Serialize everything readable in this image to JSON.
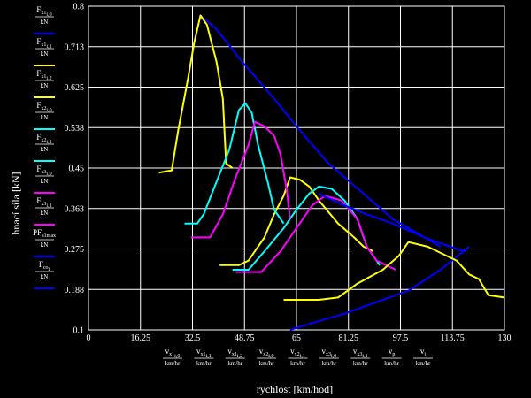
{
  "chart_data": {
    "type": "line",
    "xlabel": "rychlost [km/hod]",
    "ylabel": "hnací síla [kN]",
    "xlim": [
      0,
      130
    ],
    "ylim": [
      0.1,
      0.8
    ],
    "x_ticks": [
      "0",
      "16.25",
      "32.5",
      "48.75",
      "65",
      "81.25",
      "97.5",
      "113.75",
      "130"
    ],
    "y_ticks": [
      "0.1",
      "0.188",
      "0.275",
      "0.363",
      "0.45",
      "0.538",
      "0.625",
      "0.713",
      "0.8"
    ],
    "grid": true,
    "legend_position": "left",
    "x_series_labels": [
      {
        "base": "v",
        "sub": "x1",
        "idx": "i,0",
        "den": "km/hr"
      },
      {
        "base": "v",
        "sub": "x1",
        "idx": "i,1",
        "den": "km/hr"
      },
      {
        "base": "v",
        "sub": "x1",
        "idx": "i,2",
        "den": "km/hr"
      },
      {
        "base": "v",
        "sub": "x2",
        "idx": "i,0",
        "den": "km/hr"
      },
      {
        "base": "v",
        "sub": "x2",
        "idx": "i,1",
        "den": "km/hr"
      },
      {
        "base": "v",
        "sub": "x3",
        "idx": "i,0",
        "den": "km/hr"
      },
      {
        "base": "v",
        "sub": "x3",
        "idx": "i,1",
        "den": "km/hr"
      },
      {
        "base": "v",
        "sub": "p",
        "idx": "",
        "den": "km/hr"
      },
      {
        "base": "v",
        "sub": "",
        "idx": "i",
        "den": "km/hr"
      }
    ],
    "series": [
      {
        "legend": {
          "base": "F",
          "sub": "x1",
          "idx": "i,0",
          "den": "kN"
        },
        "color": "#0000ff",
        "points": [
          [
            35,
            0.78
          ],
          [
            40,
            0.75
          ],
          [
            48,
            0.68
          ],
          [
            58,
            0.6
          ],
          [
            65,
            0.54
          ],
          [
            75,
            0.46
          ],
          [
            85,
            0.4
          ],
          [
            95,
            0.34
          ],
          [
            105,
            0.3
          ],
          [
            110,
            0.28
          ]
        ]
      },
      {
        "legend": {
          "base": "F",
          "sub": "x1",
          "idx": "i,1",
          "den": "kN"
        },
        "color": "#ffff00",
        "points": [
          [
            22,
            0.44
          ],
          [
            26,
            0.445
          ],
          [
            28,
            0.53
          ],
          [
            31,
            0.64
          ],
          [
            33,
            0.72
          ],
          [
            35,
            0.78
          ],
          [
            37,
            0.76
          ],
          [
            40,
            0.68
          ],
          [
            42,
            0.6
          ],
          [
            43,
            0.46
          ],
          [
            45,
            0.45
          ]
        ]
      },
      {
        "legend": {
          "base": "F",
          "sub": "x1",
          "idx": "i,2",
          "den": "kN"
        },
        "color": "#ffff00",
        "points": [
          [
            41,
            0.24
          ],
          [
            47,
            0.24
          ],
          [
            50,
            0.25
          ],
          [
            55,
            0.3
          ],
          [
            58,
            0.35
          ],
          [
            61,
            0.39
          ],
          [
            63,
            0.43
          ],
          [
            66,
            0.425
          ],
          [
            69,
            0.41
          ],
          [
            72,
            0.38
          ],
          [
            78,
            0.33
          ],
          [
            83,
            0.3
          ],
          [
            86,
            0.28
          ],
          [
            89,
            0.27
          ]
        ]
      },
      {
        "legend": {
          "base": "F",
          "sub": "x2",
          "idx": "i,0",
          "den": "kN"
        },
        "color": "#00ffff",
        "points": [
          [
            30,
            0.33
          ],
          [
            34,
            0.33
          ],
          [
            36,
            0.35
          ],
          [
            40,
            0.42
          ],
          [
            44,
            0.49
          ],
          [
            47,
            0.575
          ],
          [
            49,
            0.59
          ],
          [
            51,
            0.57
          ],
          [
            53,
            0.5
          ],
          [
            56,
            0.42
          ],
          [
            58,
            0.36
          ],
          [
            61,
            0.33
          ]
        ]
      },
      {
        "legend": {
          "base": "F",
          "sub": "x2",
          "idx": "i,1",
          "den": "kN"
        },
        "color": "#00ffff",
        "points": [
          [
            45,
            0.23
          ],
          [
            50,
            0.23
          ],
          [
            55,
            0.27
          ],
          [
            61,
            0.32
          ],
          [
            65,
            0.36
          ],
          [
            69,
            0.395
          ],
          [
            72,
            0.41
          ],
          [
            76,
            0.405
          ],
          [
            80,
            0.38
          ],
          [
            84,
            0.34
          ],
          [
            87,
            0.28
          ],
          [
            91,
            0.24
          ]
        ]
      },
      {
        "legend": {
          "base": "F",
          "sub": "x3",
          "idx": "i,0",
          "den": "kN"
        },
        "color": "#ff00ff",
        "points": [
          [
            32,
            0.3
          ],
          [
            38,
            0.3
          ],
          [
            42,
            0.35
          ],
          [
            46,
            0.43
          ],
          [
            50,
            0.5
          ],
          [
            52,
            0.55
          ],
          [
            55,
            0.54
          ],
          [
            58,
            0.52
          ],
          [
            60,
            0.48
          ],
          [
            62,
            0.4
          ],
          [
            63,
            0.34
          ]
        ]
      },
      {
        "legend": {
          "base": "F",
          "sub": "x3",
          "idx": "i,1",
          "den": "kN"
        },
        "color": "#ff00ff",
        "points": [
          [
            46,
            0.225
          ],
          [
            54,
            0.225
          ],
          [
            60,
            0.27
          ],
          [
            66,
            0.33
          ],
          [
            70,
            0.37
          ],
          [
            74,
            0.39
          ],
          [
            79,
            0.38
          ],
          [
            84,
            0.34
          ],
          [
            87,
            0.28
          ],
          [
            90,
            0.25
          ],
          [
            96,
            0.23
          ]
        ]
      },
      {
        "legend": {
          "base": "F",
          "sub": "a1max",
          "idx": "",
          "den": "kN",
          "frac": "P"
        },
        "color": "#0000ff",
        "points": [
          [
            72,
            0.395
          ],
          [
            78,
            0.375
          ],
          [
            85,
            0.355
          ],
          [
            95,
            0.33
          ],
          [
            105,
            0.3
          ],
          [
            115,
            0.275
          ],
          [
            118,
            0.27
          ]
        ]
      },
      {
        "legend": {
          "base": "F",
          "sub": "co",
          "idx": "i",
          "den": "kN"
        },
        "color": "#0000ff",
        "points": [
          [
            63,
            0.1
          ],
          [
            70,
            0.115
          ],
          [
            80,
            0.135
          ],
          [
            90,
            0.16
          ],
          [
            100,
            0.185
          ],
          [
            110,
            0.23
          ],
          [
            119,
            0.28
          ]
        ]
      },
      {
        "legend": null,
        "color": "#ffff00",
        "points": [
          [
            61,
            0.165
          ],
          [
            72,
            0.165
          ],
          [
            78,
            0.17
          ],
          [
            84,
            0.2
          ],
          [
            92,
            0.23
          ],
          [
            97,
            0.26
          ],
          [
            100,
            0.29
          ],
          [
            106,
            0.28
          ],
          [
            115,
            0.25
          ],
          [
            119,
            0.22
          ],
          [
            122,
            0.21
          ],
          [
            125,
            0.175
          ],
          [
            130,
            0.17
          ]
        ]
      }
    ]
  }
}
